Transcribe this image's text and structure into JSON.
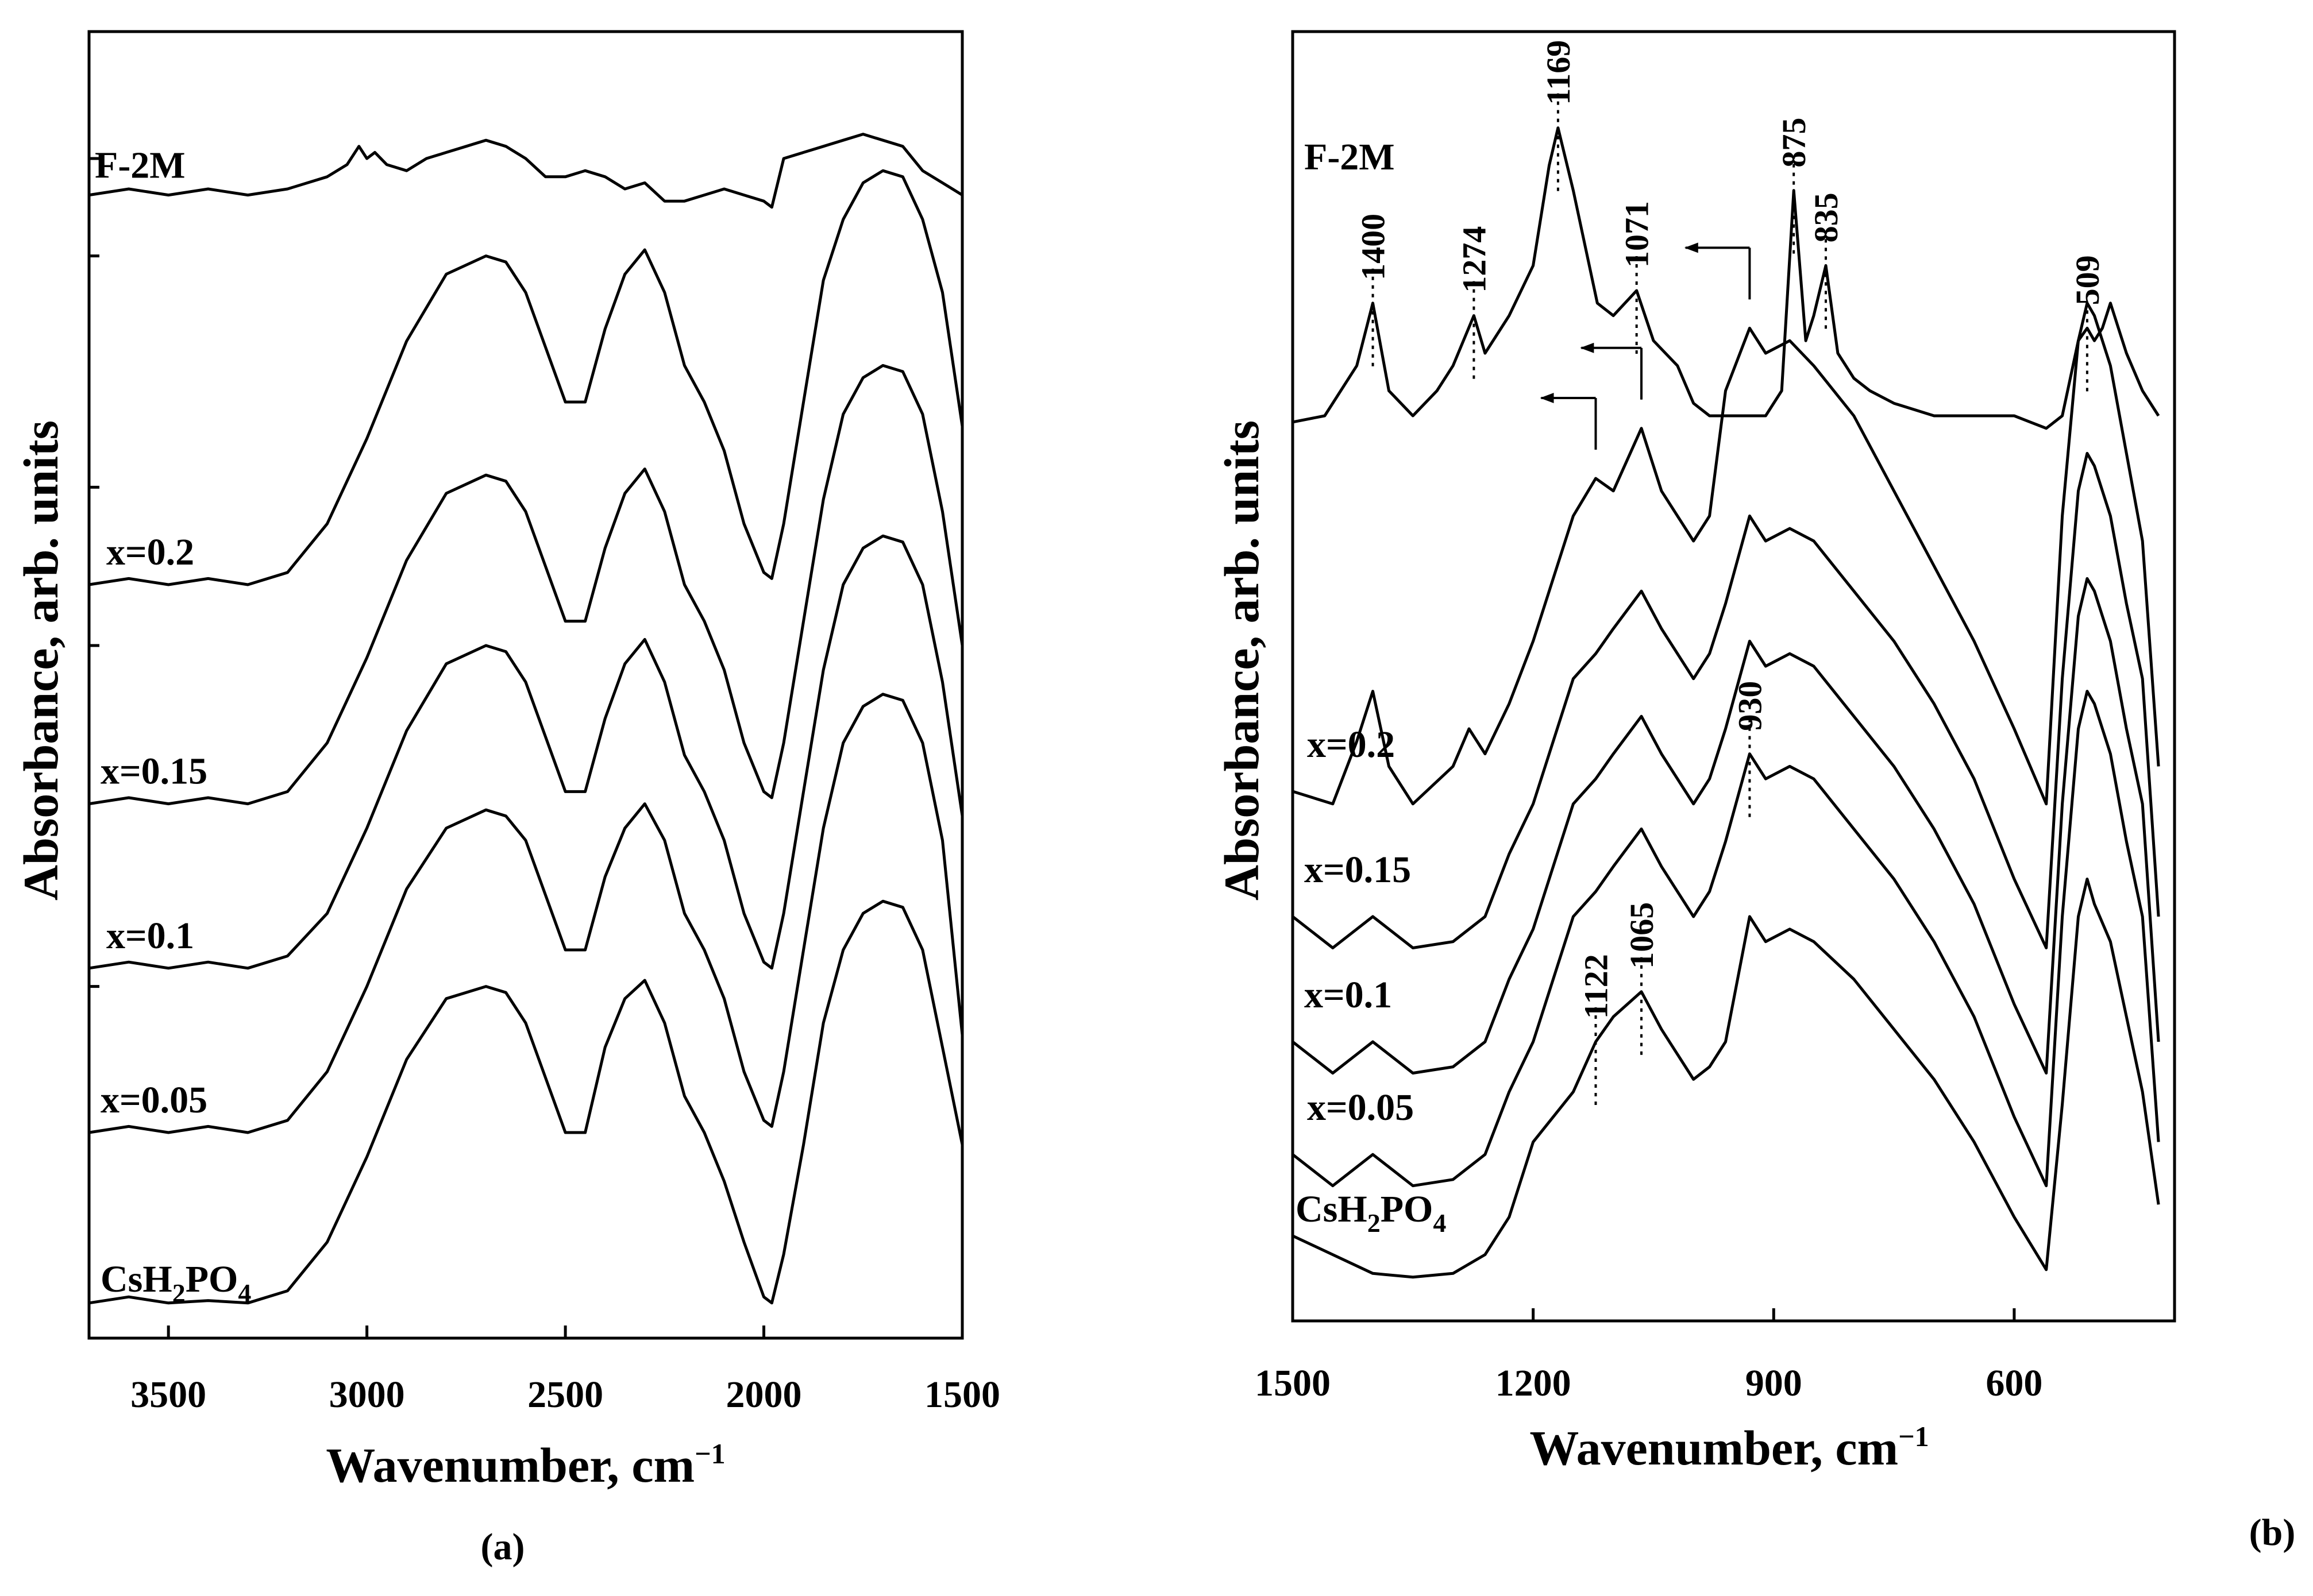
{
  "chart_data": [
    {
      "panel": "(a)",
      "type": "line",
      "xlabel": "Wavenumber, cm",
      "xlabel_sup": "−1",
      "ylabel": "Absorbance, arb. units",
      "xlim": [
        3700,
        1500
      ],
      "ylim": [
        0,
        1
      ],
      "xticks": [
        3500,
        3000,
        2500,
        2000,
        1500
      ],
      "series": [
        {
          "name": "CsH2PO4",
          "label_main": "CsH",
          "label_sub1": "2",
          "label_mid": "PO",
          "label_sub2": "4",
          "x": [
            3700,
            3600,
            3500,
            3400,
            3300,
            3200,
            3100,
            3000,
            2900,
            2800,
            2700,
            2650,
            2600,
            2500,
            2450,
            2400,
            2350,
            2300,
            2250,
            2200,
            2150,
            2100,
            2050,
            2000,
            1980,
            1950,
            1900,
            1850,
            1800,
            1750,
            1700,
            1650,
            1600,
            1550,
            1500
          ],
          "y": [
            0.01,
            0.015,
            0.01,
            0.012,
            0.01,
            0.02,
            0.06,
            0.13,
            0.21,
            0.26,
            0.27,
            0.265,
            0.24,
            0.15,
            0.15,
            0.22,
            0.26,
            0.275,
            0.24,
            0.18,
            0.15,
            0.11,
            0.06,
            0.015,
            0.01,
            0.05,
            0.14,
            0.24,
            0.3,
            0.33,
            0.34,
            0.335,
            0.3,
            0.22,
            0.14
          ]
        },
        {
          "name": "x=0.05",
          "x": [
            3700,
            3600,
            3500,
            3400,
            3300,
            3200,
            3100,
            3000,
            2900,
            2800,
            2700,
            2650,
            2600,
            2500,
            2450,
            2400,
            2350,
            2300,
            2250,
            2200,
            2150,
            2100,
            2050,
            2000,
            1980,
            1950,
            1900,
            1850,
            1800,
            1750,
            1700,
            1650,
            1600,
            1550,
            1500
          ],
          "y": [
            0.15,
            0.155,
            0.15,
            0.155,
            0.15,
            0.16,
            0.2,
            0.27,
            0.35,
            0.4,
            0.415,
            0.41,
            0.39,
            0.3,
            0.3,
            0.36,
            0.4,
            0.42,
            0.39,
            0.33,
            0.3,
            0.26,
            0.2,
            0.16,
            0.155,
            0.2,
            0.3,
            0.4,
            0.47,
            0.5,
            0.51,
            0.505,
            0.47,
            0.39,
            0.23
          ]
        },
        {
          "name": "x=0.1",
          "x": [
            3700,
            3600,
            3500,
            3400,
            3300,
            3200,
            3100,
            3000,
            2900,
            2800,
            2700,
            2650,
            2600,
            2500,
            2450,
            2400,
            2350,
            2300,
            2250,
            2200,
            2150,
            2100,
            2050,
            2000,
            1980,
            1950,
            1900,
            1850,
            1800,
            1750,
            1700,
            1650,
            1600,
            1550,
            1500
          ],
          "y": [
            0.285,
            0.29,
            0.285,
            0.29,
            0.285,
            0.295,
            0.33,
            0.4,
            0.48,
            0.535,
            0.55,
            0.545,
            0.52,
            0.43,
            0.43,
            0.49,
            0.535,
            0.555,
            0.52,
            0.46,
            0.43,
            0.39,
            0.33,
            0.29,
            0.285,
            0.33,
            0.43,
            0.53,
            0.6,
            0.63,
            0.64,
            0.635,
            0.6,
            0.52,
            0.41
          ]
        },
        {
          "name": "x=0.15",
          "x": [
            3700,
            3600,
            3500,
            3400,
            3300,
            3200,
            3100,
            3000,
            2900,
            2800,
            2700,
            2650,
            2600,
            2500,
            2450,
            2400,
            2350,
            2300,
            2250,
            2200,
            2150,
            2100,
            2050,
            2000,
            1980,
            1950,
            1900,
            1850,
            1800,
            1750,
            1700,
            1650,
            1600,
            1550,
            1500
          ],
          "y": [
            0.42,
            0.425,
            0.42,
            0.425,
            0.42,
            0.43,
            0.47,
            0.54,
            0.62,
            0.675,
            0.69,
            0.685,
            0.66,
            0.57,
            0.57,
            0.63,
            0.675,
            0.695,
            0.66,
            0.6,
            0.57,
            0.53,
            0.47,
            0.43,
            0.425,
            0.47,
            0.57,
            0.67,
            0.74,
            0.77,
            0.78,
            0.775,
            0.74,
            0.66,
            0.55
          ]
        },
        {
          "name": "x=0.2",
          "x": [
            3700,
            3600,
            3500,
            3400,
            3300,
            3200,
            3100,
            3000,
            2900,
            2800,
            2700,
            2650,
            2600,
            2500,
            2450,
            2400,
            2350,
            2300,
            2250,
            2200,
            2150,
            2100,
            2050,
            2000,
            1980,
            1950,
            1900,
            1850,
            1800,
            1750,
            1700,
            1650,
            1600,
            1550,
            1500
          ],
          "y": [
            0.6,
            0.605,
            0.6,
            0.605,
            0.6,
            0.61,
            0.65,
            0.72,
            0.8,
            0.855,
            0.87,
            0.865,
            0.84,
            0.75,
            0.75,
            0.81,
            0.855,
            0.875,
            0.84,
            0.78,
            0.75,
            0.71,
            0.65,
            0.61,
            0.605,
            0.65,
            0.75,
            0.85,
            0.9,
            0.93,
            0.94,
            0.935,
            0.9,
            0.84,
            0.73
          ]
        },
        {
          "name": "F-2M",
          "x": [
            3700,
            3600,
            3500,
            3400,
            3300,
            3200,
            3100,
            3050,
            3020,
            3000,
            2980,
            2950,
            2900,
            2850,
            2800,
            2750,
            2700,
            2650,
            2600,
            2550,
            2500,
            2450,
            2400,
            2350,
            2300,
            2250,
            2200,
            2150,
            2100,
            2050,
            2000,
            1980,
            1950,
            1900,
            1850,
            1800,
            1750,
            1700,
            1650,
            1600,
            1550,
            1500
          ],
          "y": [
            0.92,
            0.925,
            0.92,
            0.925,
            0.92,
            0.925,
            0.935,
            0.945,
            0.96,
            0.95,
            0.955,
            0.945,
            0.94,
            0.95,
            0.955,
            0.96,
            0.965,
            0.96,
            0.95,
            0.935,
            0.935,
            0.94,
            0.935,
            0.925,
            0.93,
            0.915,
            0.915,
            0.92,
            0.925,
            0.92,
            0.915,
            0.91,
            0.95,
            0.955,
            0.96,
            0.965,
            0.97,
            0.965,
            0.96,
            0.94,
            0.93,
            0.92
          ]
        }
      ]
    },
    {
      "panel": "(b)",
      "type": "line",
      "xlabel": "Wavenumber, cm",
      "xlabel_sup": "−1",
      "ylabel": "Absorbance, arb. units",
      "xlim": [
        1500,
        400
      ],
      "ylim": [
        0,
        1
      ],
      "xticks": [
        1500,
        1200,
        900,
        600
      ],
      "series": [
        {
          "name": "CsH2PO4",
          "label_main": "CsH",
          "label_sub1": "2",
          "label_mid": "PO",
          "label_sub2": "4",
          "x": [
            1500,
            1450,
            1400,
            1350,
            1300,
            1260,
            1230,
            1200,
            1150,
            1122,
            1100,
            1065,
            1040,
            1000,
            980,
            960,
            930,
            910,
            880,
            850,
            800,
            750,
            700,
            650,
            600,
            560,
            540,
            520,
            509,
            500,
            480,
            460,
            440,
            420
          ],
          "y": [
            0.045,
            0.03,
            0.015,
            0.012,
            0.015,
            0.03,
            0.06,
            0.12,
            0.16,
            0.2,
            0.22,
            0.24,
            0.21,
            0.17,
            0.18,
            0.2,
            0.3,
            0.28,
            0.29,
            0.28,
            0.25,
            0.21,
            0.17,
            0.12,
            0.06,
            0.018,
            0.15,
            0.3,
            0.33,
            0.31,
            0.28,
            0.22,
            0.16,
            0.07
          ]
        },
        {
          "name": "x=0.05",
          "x": [
            1500,
            1450,
            1420,
            1400,
            1380,
            1350,
            1300,
            1260,
            1230,
            1200,
            1150,
            1122,
            1100,
            1065,
            1040,
            1000,
            980,
            960,
            930,
            910,
            880,
            850,
            800,
            750,
            700,
            650,
            600,
            560,
            540,
            520,
            509,
            500,
            480,
            460,
            440,
            420
          ],
          "y": [
            0.11,
            0.085,
            0.1,
            0.11,
            0.1,
            0.085,
            0.09,
            0.11,
            0.16,
            0.2,
            0.3,
            0.32,
            0.34,
            0.37,
            0.34,
            0.3,
            0.32,
            0.36,
            0.43,
            0.41,
            0.42,
            0.41,
            0.37,
            0.33,
            0.28,
            0.22,
            0.14,
            0.085,
            0.3,
            0.45,
            0.48,
            0.47,
            0.43,
            0.36,
            0.3,
            0.12
          ]
        },
        {
          "name": "x=0.1",
          "x": [
            1500,
            1450,
            1420,
            1400,
            1380,
            1350,
            1300,
            1260,
            1230,
            1200,
            1150,
            1122,
            1100,
            1065,
            1040,
            1000,
            980,
            960,
            930,
            910,
            880,
            850,
            800,
            750,
            700,
            650,
            600,
            560,
            540,
            520,
            509,
            500,
            480,
            460,
            440,
            420
          ],
          "y": [
            0.2,
            0.175,
            0.19,
            0.2,
            0.19,
            0.175,
            0.18,
            0.2,
            0.25,
            0.29,
            0.39,
            0.41,
            0.43,
            0.46,
            0.43,
            0.39,
            0.41,
            0.45,
            0.52,
            0.5,
            0.51,
            0.5,
            0.46,
            0.42,
            0.37,
            0.31,
            0.23,
            0.175,
            0.39,
            0.54,
            0.57,
            0.56,
            0.52,
            0.45,
            0.39,
            0.2
          ]
        },
        {
          "name": "x=0.15",
          "x": [
            1500,
            1450,
            1420,
            1400,
            1380,
            1350,
            1300,
            1260,
            1230,
            1200,
            1150,
            1122,
            1100,
            1065,
            1040,
            1000,
            980,
            960,
            930,
            910,
            880,
            850,
            800,
            750,
            700,
            650,
            600,
            560,
            540,
            520,
            509,
            500,
            480,
            460,
            440,
            420
          ],
          "y": [
            0.3,
            0.275,
            0.29,
            0.3,
            0.29,
            0.275,
            0.28,
            0.3,
            0.35,
            0.39,
            0.49,
            0.51,
            0.53,
            0.56,
            0.53,
            0.49,
            0.51,
            0.55,
            0.62,
            0.6,
            0.61,
            0.6,
            0.56,
            0.52,
            0.47,
            0.41,
            0.33,
            0.275,
            0.49,
            0.64,
            0.67,
            0.66,
            0.62,
            0.55,
            0.49,
            0.3
          ]
        },
        {
          "name": "x=0.2",
          "x": [
            1500,
            1450,
            1420,
            1400,
            1380,
            1350,
            1300,
            1280,
            1260,
            1230,
            1200,
            1150,
            1122,
            1100,
            1065,
            1040,
            1000,
            980,
            960,
            930,
            910,
            880,
            850,
            800,
            750,
            700,
            650,
            600,
            560,
            540,
            520,
            509,
            500,
            480,
            460,
            440,
            420
          ],
          "y": [
            0.4,
            0.39,
            0.44,
            0.48,
            0.42,
            0.39,
            0.42,
            0.45,
            0.43,
            0.47,
            0.52,
            0.62,
            0.65,
            0.64,
            0.69,
            0.64,
            0.6,
            0.62,
            0.72,
            0.77,
            0.75,
            0.76,
            0.74,
            0.7,
            0.64,
            0.58,
            0.52,
            0.45,
            0.39,
            0.62,
            0.76,
            0.79,
            0.78,
            0.74,
            0.67,
            0.6,
            0.42
          ]
        },
        {
          "name": "F-2M",
          "x": [
            1500,
            1460,
            1440,
            1420,
            1400,
            1380,
            1350,
            1320,
            1300,
            1274,
            1260,
            1230,
            1200,
            1180,
            1169,
            1150,
            1120,
            1100,
            1071,
            1050,
            1020,
            1000,
            980,
            960,
            930,
            910,
            890,
            875,
            860,
            850,
            835,
            820,
            800,
            780,
            750,
            700,
            650,
            600,
            580,
            560,
            540,
            520,
            509,
            500,
            490,
            480,
            470,
            460,
            440,
            420
          ],
          "y": [
            0.695,
            0.7,
            0.72,
            0.74,
            0.79,
            0.72,
            0.7,
            0.72,
            0.74,
            0.78,
            0.75,
            0.78,
            0.82,
            0.9,
            0.93,
            0.88,
            0.79,
            0.78,
            0.8,
            0.76,
            0.74,
            0.71,
            0.7,
            0.7,
            0.7,
            0.7,
            0.72,
            0.88,
            0.76,
            0.78,
            0.82,
            0.75,
            0.73,
            0.72,
            0.71,
            0.7,
            0.7,
            0.7,
            0.695,
            0.69,
            0.7,
            0.76,
            0.77,
            0.76,
            0.77,
            0.79,
            0.77,
            0.75,
            0.72,
            0.7
          ]
        }
      ],
      "peak_labels": [
        {
          "text": "1400",
          "x": 1400,
          "series": "F-2M"
        },
        {
          "text": "1274",
          "x": 1274,
          "series": "F-2M"
        },
        {
          "text": "1169",
          "x": 1169,
          "series": "F-2M"
        },
        {
          "text": "1071",
          "x": 1071,
          "series": "F-2M"
        },
        {
          "text": "875",
          "x": 875,
          "series": "F-2M"
        },
        {
          "text": "835",
          "x": 835,
          "series": "F-2M"
        },
        {
          "text": "509",
          "x": 509,
          "series": "F-2M"
        },
        {
          "text": "1122",
          "x": 1122,
          "series": "CsH2PO4"
        },
        {
          "text": "1065",
          "x": 1065,
          "series": "CsH2PO4"
        },
        {
          "text": "930",
          "x": 930,
          "series": "x=0.05"
        }
      ],
      "arrows": [
        {
          "from_x": 930,
          "to_x": 1010,
          "series": "x=0.2",
          "direction": "left"
        },
        {
          "from_x": 1065,
          "to_x": 1140,
          "series": "x=0.2",
          "direction": "left"
        },
        {
          "from_x": 1122,
          "to_x": 1190,
          "series": "x=0.2",
          "direction": "left"
        }
      ]
    }
  ],
  "labels": {
    "panel_a": "(a)",
    "panel_b": "(b)"
  }
}
